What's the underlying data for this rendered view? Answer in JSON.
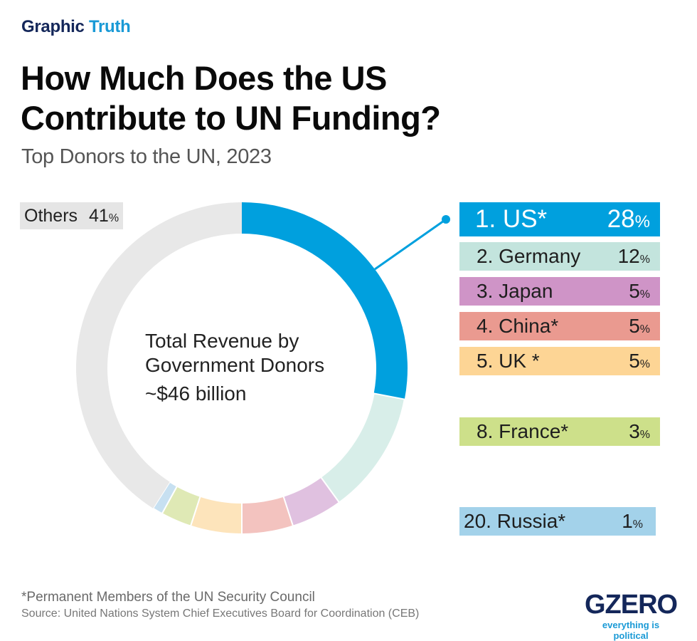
{
  "header": {
    "kicker_part1": "Graphic",
    "kicker_part2": "Truth",
    "title": "How Much Does the US Contribute to UN Funding?",
    "subtitle": "Top Donors to the UN, 2023"
  },
  "center": {
    "line1": "Total Revenue by",
    "line2": "Government Donors",
    "amount": "~$46 billion"
  },
  "others_label": {
    "name": "Others",
    "value": "41",
    "unit": "%"
  },
  "legend": [
    {
      "label": "1. US*",
      "value": "28",
      "unit": "%",
      "color": "#00a0de",
      "text_color": "#ffffff"
    },
    {
      "label": "2. Germany",
      "value": "12",
      "unit": "%",
      "color": "#c3e4dd",
      "text_color": "#1e1e1e"
    },
    {
      "label": "3. Japan",
      "value": "5",
      "unit": "%",
      "color": "#cf94c7",
      "text_color": "#1e1e1e"
    },
    {
      "label": "4. China*",
      "value": "5",
      "unit": "%",
      "color": "#ea9a90",
      "text_color": "#1e1e1e"
    },
    {
      "label": "5. UK *",
      "value": "5",
      "unit": "%",
      "color": "#fdd595",
      "text_color": "#1e1e1e"
    },
    {
      "label": "8. France*",
      "value": "3",
      "unit": "%",
      "color": "#cde08a",
      "text_color": "#1e1e1e"
    },
    {
      "label": "20. Russia*",
      "value": "1",
      "unit": "%",
      "color": "#a3d2ea",
      "text_color": "#1e1e1e"
    }
  ],
  "chart_data": {
    "type": "pie",
    "variant": "donut",
    "title": "How Much Does the US Contribute to UN Funding?",
    "subtitle": "Top Donors to the UN, 2023",
    "unit": "%",
    "total_label": "~$46 billion",
    "categories": [
      "US",
      "Germany",
      "Japan",
      "China",
      "UK",
      "France",
      "Russia",
      "Others"
    ],
    "values": [
      28,
      12,
      5,
      5,
      5,
      3,
      1,
      41
    ],
    "colors": [
      "#00a0de",
      "#d8eee9",
      "#e0c1e0",
      "#f3c3bf",
      "#fde4bb",
      "#dfe9b5",
      "#c7e0f1",
      "#e8e8e8"
    ],
    "start": "top",
    "direction": "clockwise",
    "highlight": "US"
  },
  "footer": {
    "footnote": "*Permanent Members of the UN Security Council",
    "source": "Source: United Nations System Chief Executives Board for Coordination (CEB)"
  },
  "logo": {
    "mark": "GZERO",
    "tagline": "everything is political"
  }
}
